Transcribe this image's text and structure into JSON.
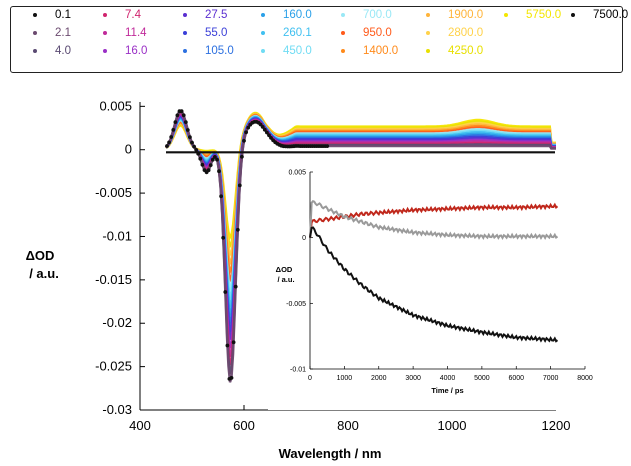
{
  "chart_data": [
    {
      "type": "line",
      "xlabel": "Wavelength / nm",
      "ylabel_line1": "ΔOD",
      "ylabel_line2": "/ a.u.",
      "xlim": [
        400,
        1200
      ],
      "ylim": [
        -0.03,
        0.0055
      ],
      "xticks": [
        "400",
        "600",
        "800",
        "1000",
        "1200"
      ],
      "yticks": [
        "0.005",
        "0",
        "-0.005",
        "-0.01",
        "-0.015",
        "-0.02",
        "-0.025",
        "-0.03"
      ],
      "legend_placement": "top",
      "series": [
        {
          "name": "0.1",
          "color": "#111111"
        },
        {
          "name": "2.1",
          "color": "#6b4a6f"
        },
        {
          "name": "4.0",
          "color": "#5a4a72"
        },
        {
          "name": "7.4",
          "color": "#d0246e"
        },
        {
          "name": "11.4",
          "color": "#c02a9a"
        },
        {
          "name": "16.0",
          "color": "#9a2fc6"
        },
        {
          "name": "27.5",
          "color": "#5a2ed0"
        },
        {
          "name": "55.0",
          "color": "#3a3fd8"
        },
        {
          "name": "105.0",
          "color": "#2c70e0"
        },
        {
          "name": "160.0",
          "color": "#2aa0e8"
        },
        {
          "name": "260.1",
          "color": "#40c0f0"
        },
        {
          "name": "450.0",
          "color": "#70dcf4"
        },
        {
          "name": "700.0",
          "color": "#9ae8f6"
        },
        {
          "name": "950.0",
          "color": "#ff5a1a"
        },
        {
          "name": "1400.0",
          "color": "#ff8a1a"
        },
        {
          "name": "1900.0",
          "color": "#ffb43a"
        },
        {
          "name": "2800.0",
          "color": "#ffd24a"
        },
        {
          "name": "4250.0",
          "color": "#e8e000"
        },
        {
          "name": "5750.0",
          "color": "#f4e600"
        },
        {
          "name": "7500.0",
          "color": "#111111"
        }
      ]
    },
    {
      "type": "line",
      "xlabel": "Time / ps",
      "ylabel_line1": "ΔOD",
      "ylabel_line2": "/ a.u.",
      "xlim": [
        0,
        8000
      ],
      "ylim": [
        -0.01,
        0.005
      ],
      "xticks": [
        "0",
        "1000",
        "2000",
        "3000",
        "4000",
        "5000",
        "6000",
        "7000",
        "8000"
      ],
      "yticks": [
        "0.005",
        "0",
        "-0.005",
        "-0.01"
      ],
      "series": [
        {
          "color": "#c0281c",
          "x": [
            0,
            50,
            200,
            500,
            1000,
            1500,
            2000,
            3000,
            4000,
            5000,
            6000,
            7200
          ],
          "y": [
            0.0,
            0.0012,
            0.0013,
            0.0014,
            0.0016,
            0.0018,
            0.0019,
            0.0021,
            0.0022,
            0.0023,
            0.0023,
            0.0024
          ]
        },
        {
          "color": "#9a9a9a",
          "x": [
            0,
            50,
            200,
            500,
            1000,
            1500,
            2000,
            3000,
            4000,
            5000,
            6000,
            7200
          ],
          "y": [
            0.0,
            0.0027,
            0.0026,
            0.0022,
            0.0016,
            0.0012,
            0.0008,
            0.0004,
            0.0002,
            0.0001,
            0.0001,
            0.0001
          ]
        },
        {
          "color": "#111111",
          "x": [
            0,
            50,
            200,
            500,
            1000,
            1500,
            2000,
            3000,
            4000,
            5000,
            6000,
            7200
          ],
          "y": [
            0.0,
            0.0008,
            0.0003,
            -0.0009,
            -0.0024,
            -0.0036,
            -0.0046,
            -0.0059,
            -0.0067,
            -0.0072,
            -0.0076,
            -0.0078
          ]
        }
      ]
    }
  ]
}
